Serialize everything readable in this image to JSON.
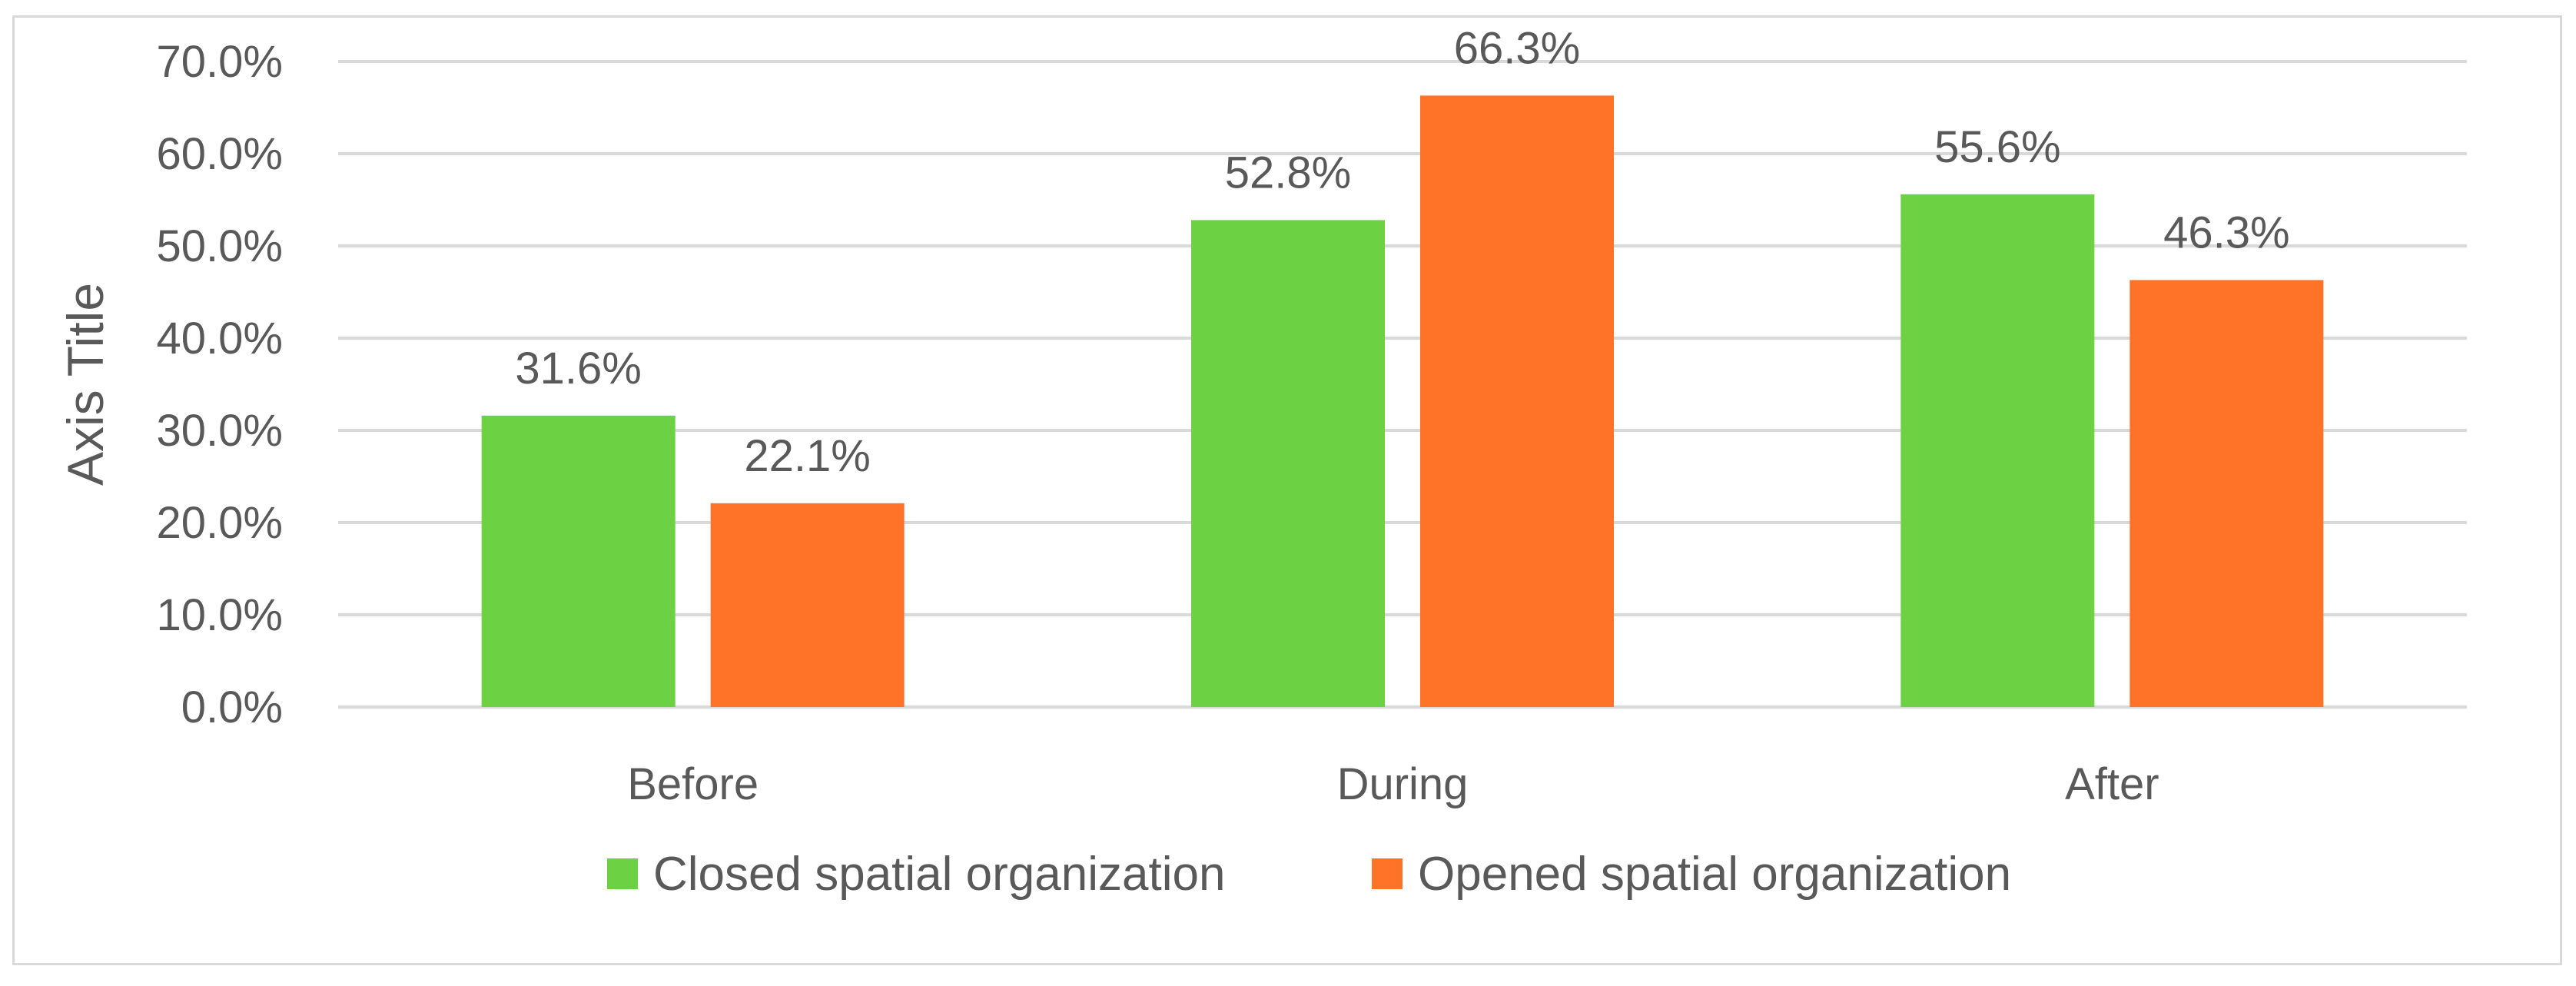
{
  "chart_data": {
    "type": "bar",
    "title": "",
    "xlabel": "",
    "ylabel": "Axis Title",
    "categories": [
      "Before",
      "During",
      "After"
    ],
    "series": [
      {
        "name": "Closed spatial organization",
        "color": "#6cd143",
        "values": [
          31.6,
          52.8,
          55.6
        ],
        "labels": [
          "31.6%",
          "52.8%",
          "55.6%"
        ]
      },
      {
        "name": "Opened spatial organization",
        "color": "#ff7328",
        "values": [
          22.1,
          66.3,
          46.3
        ],
        "labels": [
          "22.1%",
          "66.3%",
          "46.3%"
        ]
      }
    ],
    "ylim": [
      0,
      70
    ],
    "yticks": [
      0,
      10,
      20,
      30,
      40,
      50,
      60,
      70
    ],
    "ytick_labels": [
      "0.0%",
      "10.0%",
      "20.0%",
      "30.0%",
      "40.0%",
      "50.0%",
      "60.0%",
      "70.0%"
    ],
    "grid": true,
    "legend_position": "bottom",
    "colors": {
      "gridline": "#d9d9d9",
      "text": "#595959",
      "border": "#d9d9d9"
    }
  }
}
